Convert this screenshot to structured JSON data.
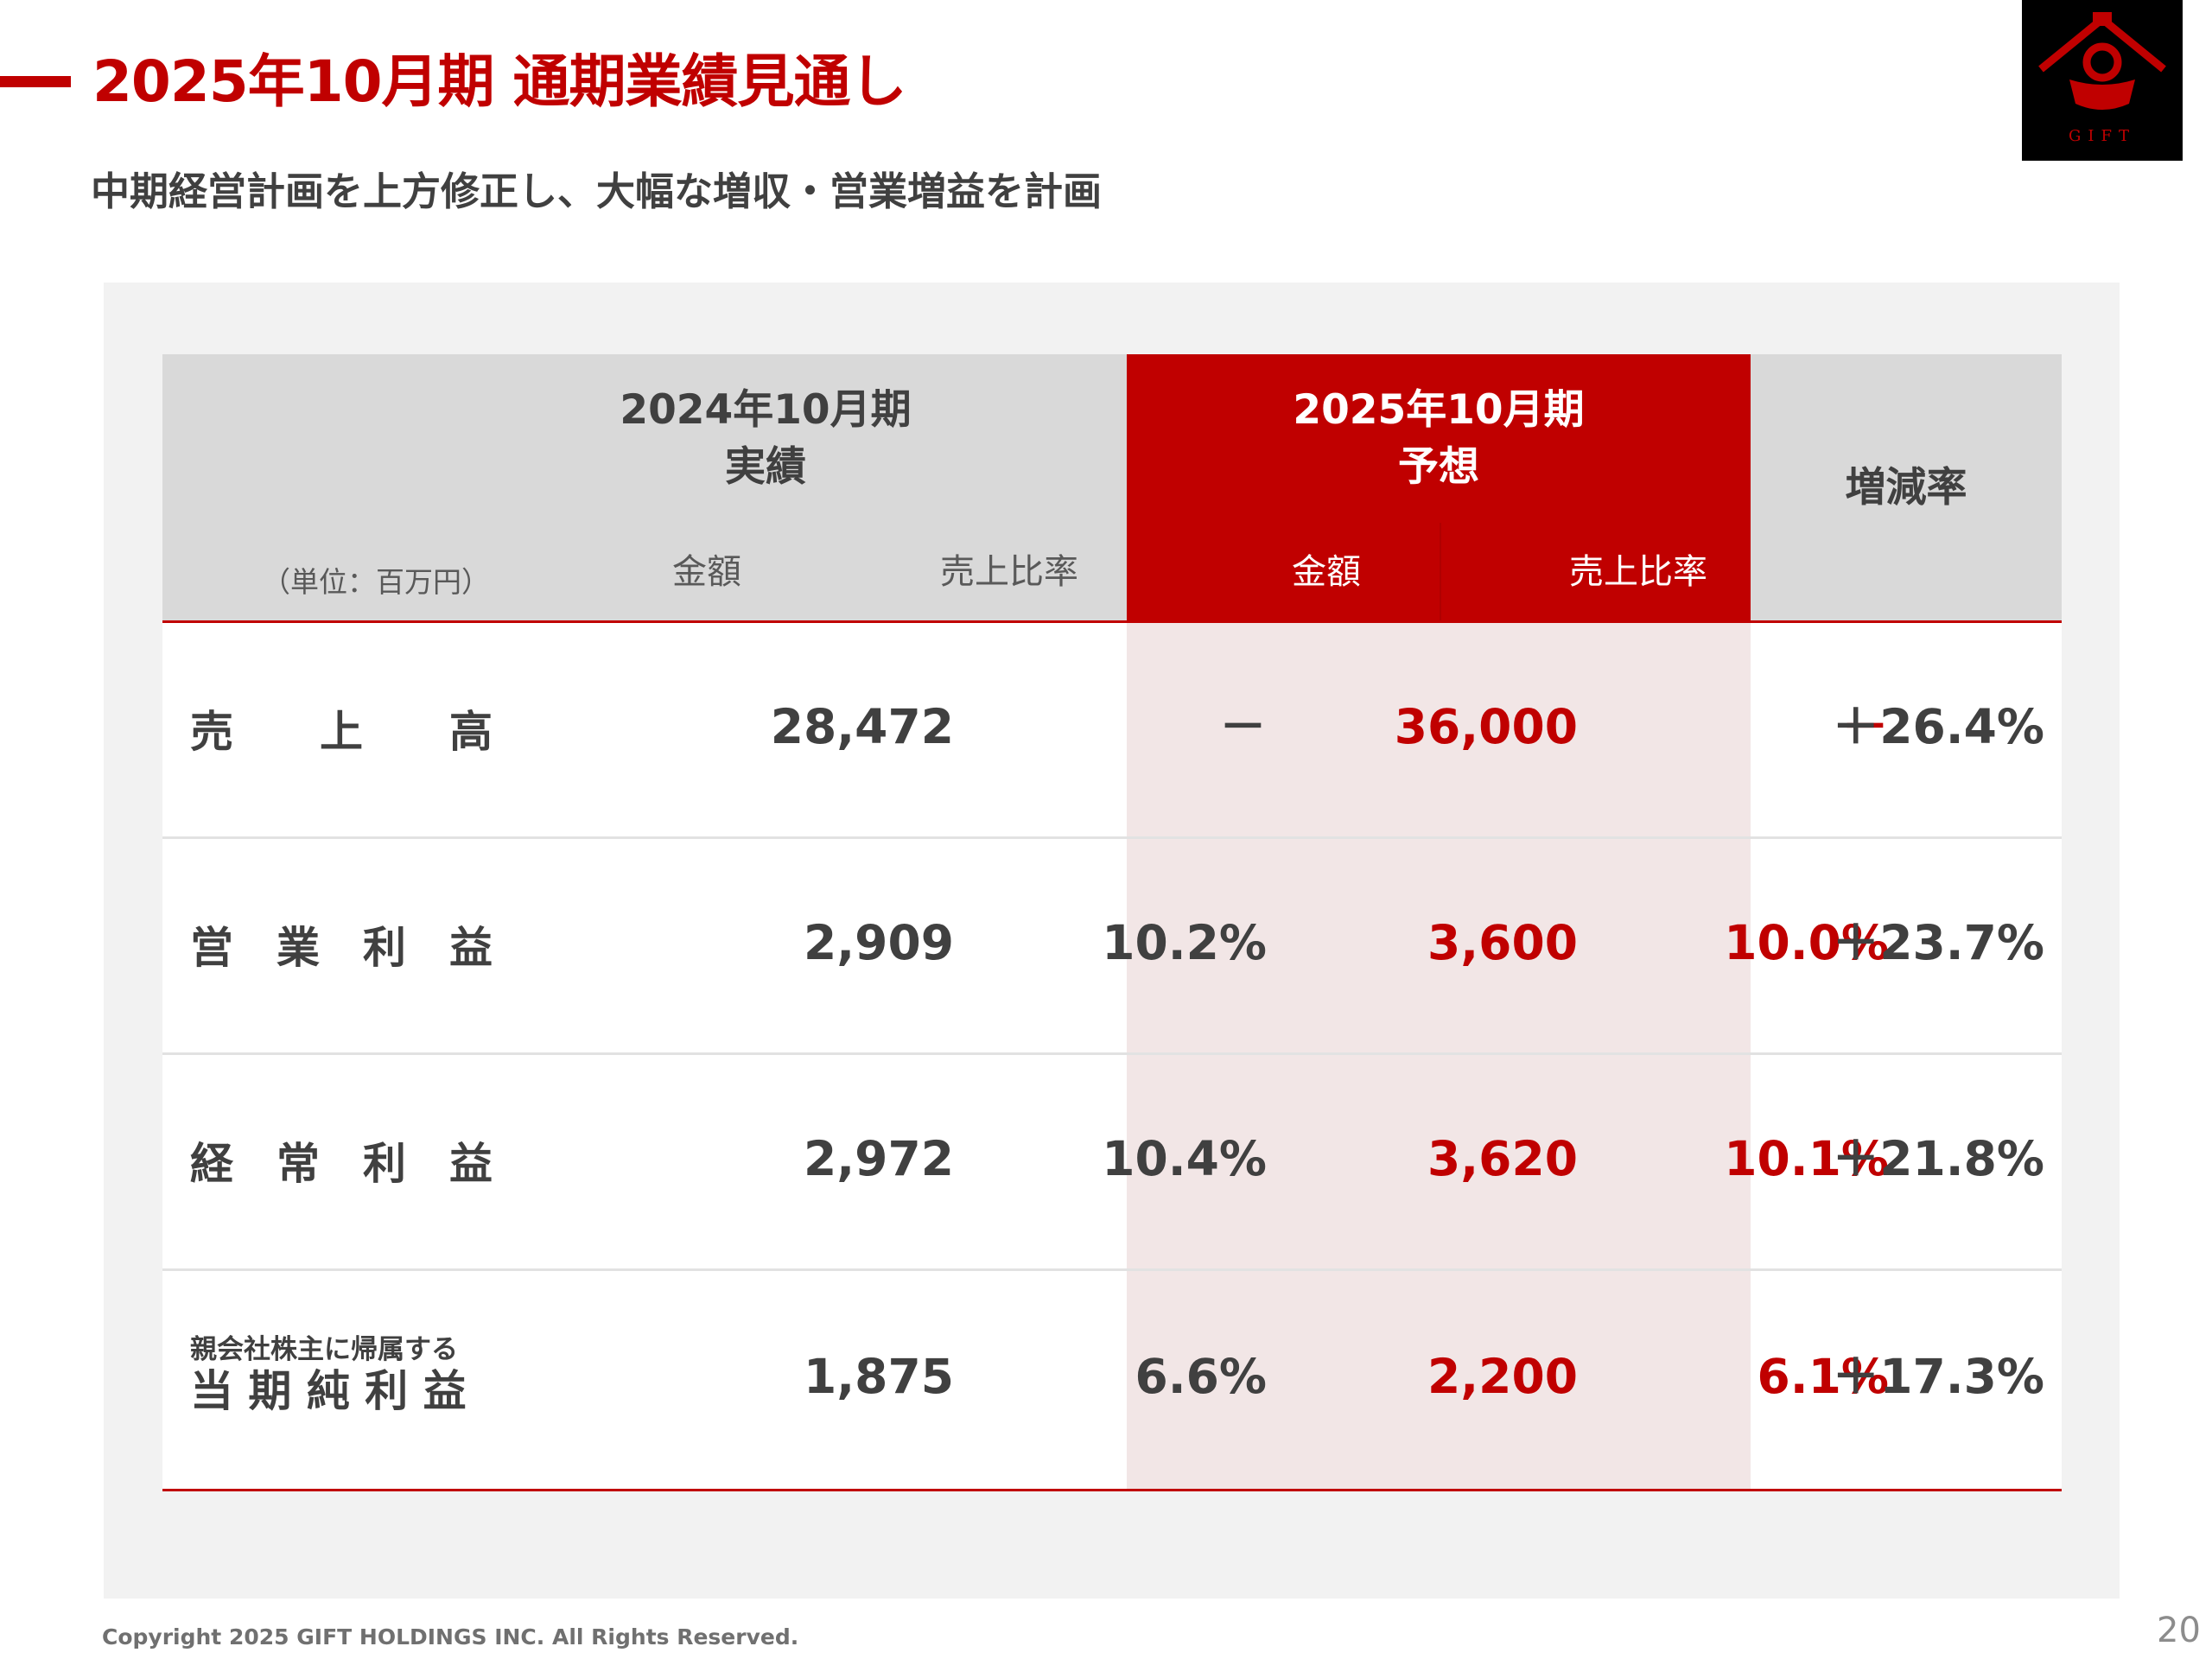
{
  "page": {
    "title": "2025年10月期 通期業績見通し",
    "subtitle": "中期経営計画を上方修正し、大幅な増収・営業増益を計画",
    "copyright": "Copyright 2025 GIFT HOLDINGS INC. All Rights Reserved.",
    "page_number": "20"
  },
  "logo": {
    "text": "GIFT"
  },
  "table": {
    "unit": "（単位：百万円）",
    "actual_header": {
      "line1": "2024年10月期",
      "line2": "実績"
    },
    "forecast_header": {
      "line1": "2025年10月期",
      "line2": "予想"
    },
    "rate_header": "増減率",
    "col_amount": "金額",
    "col_ratio": "売上比率",
    "rows": [
      {
        "label": "売　　上　　高",
        "actual_amount": "28,472",
        "actual_ratio": "－",
        "forecast_amount": "36,000",
        "forecast_ratio": "－",
        "change": "＋26.4%"
      },
      {
        "label": "営　業　利　益",
        "actual_amount": "2,909",
        "actual_ratio": "10.2%",
        "forecast_amount": "3,600",
        "forecast_ratio": "10.0%",
        "change": "＋23.7%"
      },
      {
        "label": "経　常　利　益",
        "actual_amount": "2,972",
        "actual_ratio": "10.4%",
        "forecast_amount": "3,620",
        "forecast_ratio": "10.1%",
        "change": "＋21.8%"
      },
      {
        "label_small": "親会社株主に帰属する",
        "label": "当 期 純 利 益",
        "actual_amount": "1,875",
        "actual_ratio": "6.6%",
        "forecast_amount": "2,200",
        "forecast_ratio": "6.1%",
        "change": "＋17.3%"
      }
    ]
  },
  "colors": {
    "accent": "#c00000",
    "header_gray": "#d9d9d9",
    "panel": "#f2f2f2",
    "forecast_tint": "#f2e6e6"
  }
}
